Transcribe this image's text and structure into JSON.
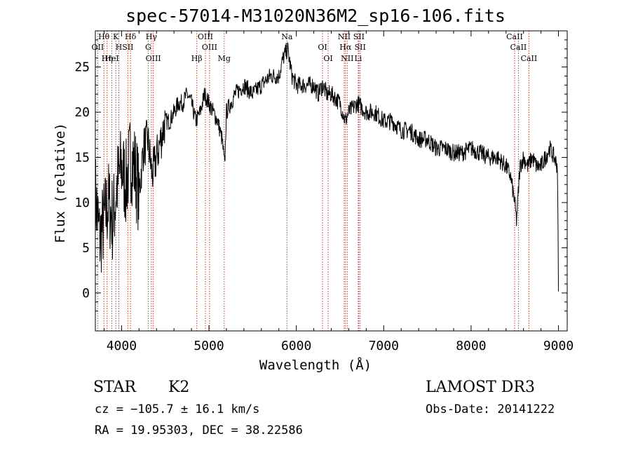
{
  "chart_data": {
    "type": "line",
    "title": "spec-57014-M31020N36M2_sp16-106.fits",
    "xlabel": "Wavelength (Å)",
    "ylabel": "Flux (relative)",
    "xlim": [
      3700,
      9100
    ],
    "ylim": [
      -4.2,
      29.0
    ],
    "xticks": [
      4000,
      5000,
      6000,
      7000,
      8000,
      9000
    ],
    "yticks": [
      0,
      5,
      10,
      15,
      20,
      25
    ],
    "series": [
      {
        "name": "flux",
        "x": [
          3700,
          3750,
          3800,
          3850,
          3900,
          3950,
          4000,
          4050,
          4100,
          4150,
          4200,
          4250,
          4300,
          4350,
          4400,
          4450,
          4500,
          4550,
          4600,
          4650,
          4700,
          4750,
          4800,
          4850,
          4900,
          4950,
          5000,
          5050,
          5100,
          5150,
          5180,
          5200,
          5250,
          5300,
          5400,
          5500,
          5600,
          5700,
          5800,
          5850,
          5900,
          5950,
          6000,
          6100,
          6200,
          6250,
          6300,
          6350,
          6400,
          6500,
          6560,
          6600,
          6700,
          6800,
          6900,
          7000,
          7100,
          7200,
          7300,
          7400,
          7500,
          7600,
          7700,
          7800,
          7900,
          8000,
          8100,
          8200,
          8300,
          8400,
          8450,
          8500,
          8520,
          8540,
          8560,
          8600,
          8650,
          8700,
          8750,
          8800,
          8850,
          8900,
          8950,
          8990,
          9000
        ],
        "y": [
          11,
          6,
          8,
          10,
          8,
          12,
          14,
          12,
          15,
          14,
          11,
          16,
          17,
          13,
          15,
          17,
          19,
          19,
          20,
          21,
          21,
          22,
          21,
          19,
          20,
          22,
          21,
          20,
          19,
          17,
          14,
          20,
          21,
          22,
          23,
          22,
          23,
          24,
          24,
          26,
          27,
          24,
          23,
          23,
          23,
          22,
          23,
          22,
          22,
          21,
          19,
          20,
          21,
          20,
          20,
          19,
          19,
          18,
          18,
          17,
          17,
          16,
          16,
          15.5,
          15.5,
          16,
          15.5,
          15,
          15,
          14,
          13,
          10,
          8,
          11,
          14,
          15,
          14,
          15,
          14,
          14,
          15,
          16,
          15,
          14,
          0
        ]
      }
    ],
    "lines": [
      {
        "name": "Hθ",
        "w": 3798
      },
      {
        "name": "OII",
        "w": 3727
      },
      {
        "name": "Hη",
        "w": 3835
      },
      {
        "name": "K",
        "w": 3934
      },
      {
        "name": "H",
        "w": 3969
      },
      {
        "name": "HeI",
        "w": 3889
      },
      {
        "name": "Hδ",
        "w": 4102
      },
      {
        "name": "SII",
        "w": 4072
      },
      {
        "name": "OIII",
        "w": 4363
      },
      {
        "name": "Hγ",
        "w": 4341
      },
      {
        "name": "G",
        "w": 4305
      },
      {
        "name": "Hβ",
        "w": 4861
      },
      {
        "name": "OIII",
        "w": 4959
      },
      {
        "name": "OIII",
        "w": 5007
      },
      {
        "name": "Mg",
        "w": 5175
      },
      {
        "name": "Na",
        "w": 5893
      },
      {
        "name": "OI",
        "w": 6300
      },
      {
        "name": "OI",
        "w": 6364
      },
      {
        "name": "NII",
        "w": 6548
      },
      {
        "name": "Hα",
        "w": 6563
      },
      {
        "name": "NII",
        "w": 6583
      },
      {
        "name": "SII",
        "w": 6716
      },
      {
        "name": "SII",
        "w": 6731
      },
      {
        "name": "Li",
        "w": 6708
      },
      {
        "name": "CaII",
        "w": 8498
      },
      {
        "name": "CaII",
        "w": 8542
      },
      {
        "name": "CaII",
        "w": 8662
      }
    ]
  },
  "info": {
    "object_class": "STAR",
    "subclass": "K2",
    "survey": "LAMOST DR3",
    "cz": "cz = −105.7 ± 16.1 km/s",
    "obs_date": "Obs-Date: 20141222",
    "coords": "RA =  19.95303, DEC =  38.22586"
  }
}
